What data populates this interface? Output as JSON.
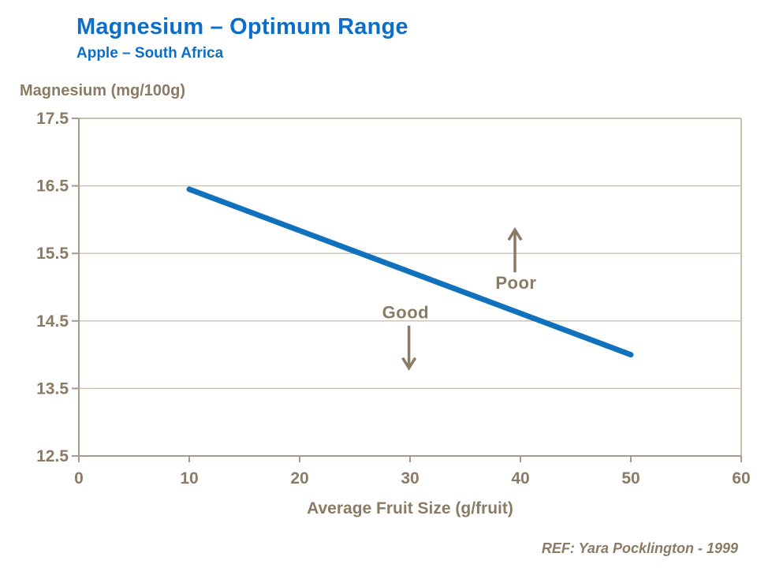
{
  "header": {
    "title": "Magnesium – Optimum Range",
    "subtitle": "Apple – South Africa"
  },
  "footer": {
    "ref": "REF: Yara Pocklington - 1999"
  },
  "colors": {
    "title_blue": "#0d6ec8",
    "line_blue": "#1072bc",
    "text_taupe": "#8c7b64",
    "axis": "#a79b89",
    "grid": "#c9bfb0",
    "background": "#ffffff"
  },
  "chart_data": {
    "type": "line",
    "title": "Magnesium – Optimum Range",
    "subtitle": "Apple – South Africa",
    "xlabel": "Average Fruit Size (g/fruit)",
    "ylabel": "Magnesium (mg/100g)",
    "xlim": [
      0,
      60
    ],
    "ylim": [
      12.5,
      17.5
    ],
    "xticks": [
      0,
      10,
      20,
      30,
      40,
      50,
      60
    ],
    "yticks": [
      12.5,
      13.5,
      14.5,
      15.5,
      16.5,
      17.5
    ],
    "grid": "horizontal",
    "legend": "none",
    "series": [
      {
        "name": "optimum-threshold-line",
        "color": "#1072bc",
        "points": [
          {
            "x": 10,
            "y": 16.45
          },
          {
            "x": 50,
            "y": 14.0
          }
        ]
      }
    ],
    "annotations": [
      {
        "label": "Good",
        "x": 29.6,
        "y": 14.63,
        "arrow": "down",
        "arrow_x": 29.9,
        "arrow_from_y": 14.43,
        "arrow_to_y": 13.8
      },
      {
        "label": "Poor",
        "x": 39.6,
        "y": 15.07,
        "arrow": "up",
        "arrow_x": 39.5,
        "arrow_from_y": 15.22,
        "arrow_to_y": 15.85
      }
    ]
  }
}
